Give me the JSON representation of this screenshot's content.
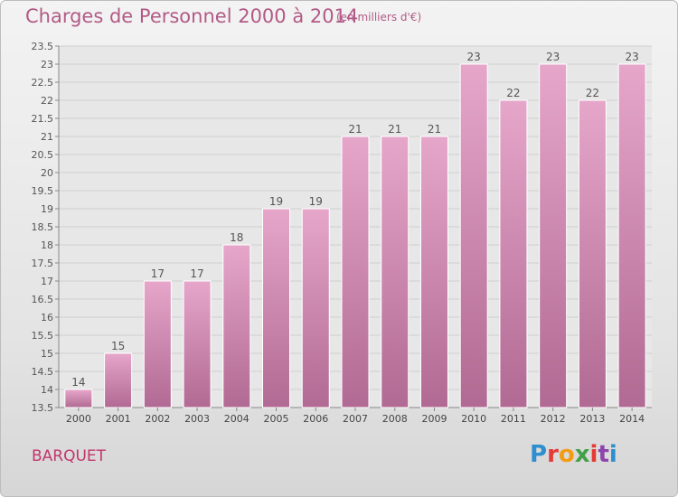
{
  "header": {
    "title": "Charges de Personnel 2000 à 2014",
    "subtitle": "(en milliers d'€)"
  },
  "footer": {
    "commune": "BARQUET",
    "logo_text": "Proxiti",
    "logo_colors": [
      "#2e8fd0",
      "#e53935",
      "#f39c12",
      "#43a047",
      "#e53935",
      "#8e44ad",
      "#2e8fd0"
    ]
  },
  "colors": {
    "bar_top": "#e6a6ca",
    "bar_bottom": "#b16a93",
    "title": "#b25a86"
  },
  "chart_data": {
    "type": "bar",
    "categories": [
      "2000",
      "2001",
      "2002",
      "2003",
      "2004",
      "2005",
      "2006",
      "2007",
      "2008",
      "2009",
      "2010",
      "2011",
      "2012",
      "2013",
      "2014"
    ],
    "values": [
      14,
      15,
      17,
      17,
      18,
      19,
      19,
      21,
      21,
      21,
      23,
      22,
      23,
      22,
      23
    ],
    "data_labels": [
      "14",
      "15",
      "17",
      "17",
      "18",
      "19",
      "19",
      "21",
      "21",
      "21",
      "23",
      "22",
      "23",
      "22",
      "23"
    ],
    "ylim": [
      13.5,
      23.5
    ],
    "yticks": [
      "13.5",
      "14",
      "14.5",
      "15",
      "15.5",
      "16",
      "16.5",
      "17",
      "17.5",
      "18",
      "18.5",
      "19",
      "19.5",
      "20",
      "20.5",
      "21",
      "21.5",
      "22",
      "22.5",
      "23",
      "23.5"
    ],
    "grid": true
  }
}
